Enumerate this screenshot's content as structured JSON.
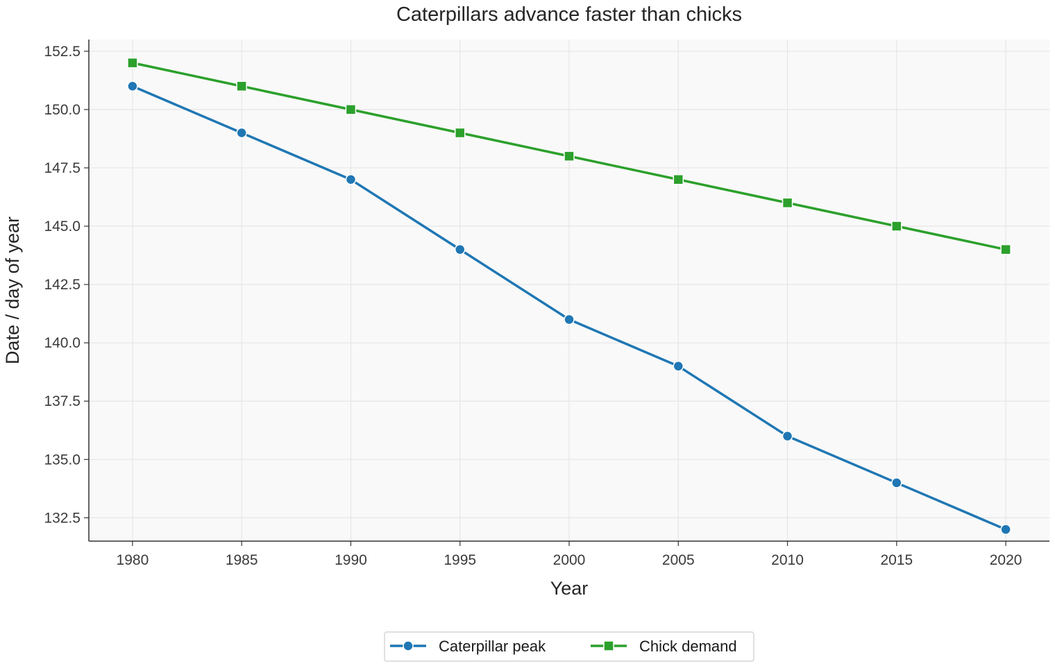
{
  "chart_data": {
    "type": "line",
    "title": "Caterpillars advance faster than chicks",
    "xlabel": "Year",
    "ylabel": "Date / day of year",
    "x": [
      1980,
      1985,
      1990,
      1995,
      2000,
      2005,
      2010,
      2015,
      2020
    ],
    "xticks": [
      "1980",
      "1985",
      "1990",
      "1995",
      "2000",
      "2005",
      "2010",
      "2015",
      "2020"
    ],
    "yticks": [
      "132.5",
      "135.0",
      "137.5",
      "140.0",
      "142.5",
      "145.0",
      "147.5",
      "150.0",
      "152.5"
    ],
    "xlim": [
      1978,
      2022
    ],
    "ylim": [
      131.5,
      153
    ],
    "grid": true,
    "legend_position": "bottom-center",
    "series": [
      {
        "name": "Caterpillar peak",
        "color": "#1f77b4",
        "marker": "circle",
        "values": [
          151,
          149,
          147,
          144,
          141,
          139,
          136,
          134,
          132
        ]
      },
      {
        "name": "Chick demand",
        "color": "#2ca02c",
        "marker": "square",
        "values": [
          152,
          151,
          150,
          149,
          148,
          147,
          146,
          145,
          144
        ]
      }
    ]
  }
}
